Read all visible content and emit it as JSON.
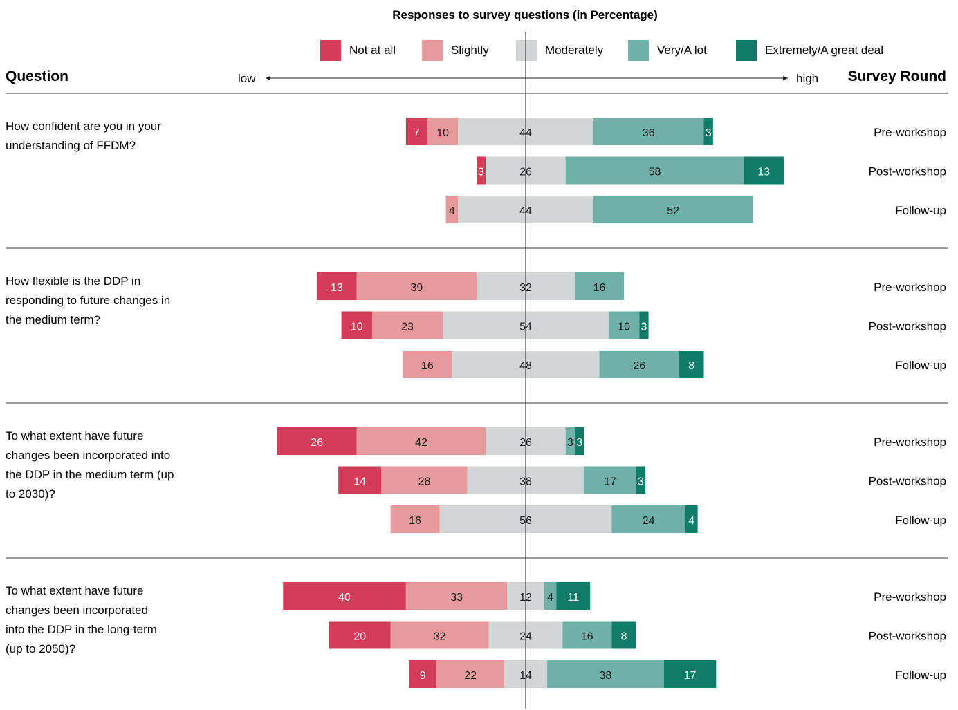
{
  "chart_data": {
    "type": "bar",
    "subtype": "diverging-stacked",
    "title": "Responses to survey questions (in Percentage)",
    "y_header": "Question",
    "right_header": "Survey Round",
    "axis_low_label": "low",
    "axis_high_label": "high",
    "legend_position": "top",
    "categories_legend": [
      "Not at all",
      "Slightly",
      "Moderately",
      "Very/A lot",
      "Extremely/A great deal"
    ],
    "colors": [
      "#d43d5a",
      "#e69a9c",
      "#d3d6d6",
      "#6fb0a8",
      "#0e7c68"
    ],
    "questions": [
      {
        "lines": [
          "How confident are you in your",
          "understanding of FFDM?"
        ],
        "rounds": [
          {
            "round": "Pre-workshop",
            "values": [
              7,
              10,
              44,
              36,
              3
            ]
          },
          {
            "round": "Post-workshop",
            "values": [
              3,
              0,
              26,
              58,
              13
            ]
          },
          {
            "round": "Follow-up",
            "values": [
              0,
              4,
              44,
              52,
              0
            ]
          }
        ]
      },
      {
        "lines": [
          "How flexible is the DDP in",
          "responding to future changes in",
          "the medium term?"
        ],
        "rounds": [
          {
            "round": "Pre-workshop",
            "values": [
              13,
              39,
              32,
              16,
              0
            ]
          },
          {
            "round": "Post-workshop",
            "values": [
              10,
              23,
              54,
              10,
              3
            ]
          },
          {
            "round": "Follow-up",
            "values": [
              0,
              16,
              48,
              26,
              8
            ]
          }
        ]
      },
      {
        "lines": [
          "To what extent have future",
          "changes been incorporated into",
          "the DDP in the medium term  (up",
          "to 2030)?"
        ],
        "rounds": [
          {
            "round": "Pre-workshop",
            "values": [
              26,
              42,
              26,
              3,
              3
            ]
          },
          {
            "round": "Post-workshop",
            "values": [
              14,
              28,
              38,
              17,
              3
            ]
          },
          {
            "round": "Follow-up",
            "values": [
              0,
              16,
              56,
              24,
              4
            ]
          }
        ]
      },
      {
        "lines": [
          "To what extent have future",
          "changes been incorporated",
          "into the DDP in the long-term",
          "(up to 2050)?"
        ],
        "rounds": [
          {
            "round": "Pre-workshop",
            "values": [
              40,
              33,
              12,
              4,
              11
            ]
          },
          {
            "round": "Post-workshop",
            "values": [
              20,
              32,
              24,
              16,
              8
            ]
          },
          {
            "round": "Follow-up",
            "values": [
              9,
              22,
              14,
              38,
              17
            ]
          }
        ]
      }
    ]
  }
}
